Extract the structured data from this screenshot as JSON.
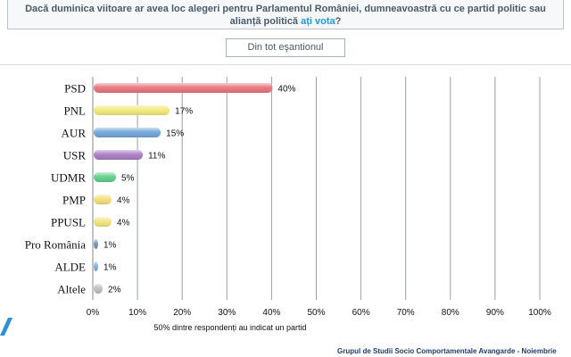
{
  "question": {
    "line1": "Dacă duminica viitoare ar avea loc alegeri pentru Parlamentul României, dumneavoastră cu ce partid politic sau",
    "line2_pre": "alianță politică ",
    "line2_highlight": "ați vota",
    "line2_post": "?"
  },
  "sample_box": {
    "label": "Din tot eşantionul"
  },
  "chart_data": {
    "type": "bar",
    "orientation": "horizontal",
    "categories": [
      "PSD",
      "PNL",
      "AUR",
      "USR",
      "UDMR",
      "PMP",
      "PPUSL",
      "Pro România",
      "ALDE",
      "Altele"
    ],
    "values": [
      40,
      17,
      15,
      11,
      5,
      4,
      4,
      1,
      1,
      2
    ],
    "data_labels": [
      "40%",
      "17%",
      "15%",
      "11%",
      "5%",
      "4%",
      "4%",
      "1%",
      "1%",
      "2%"
    ],
    "colors": [
      "#e8747c",
      "#f1ea7a",
      "#6fa5d8",
      "#a77cc4",
      "#5fcf8a",
      "#f3df7a",
      "#f1e57c",
      "#7a8fb8",
      "#7fb2de",
      "#bdbdbd"
    ],
    "xlim": [
      0,
      100
    ],
    "xticks": [
      "0%",
      "10%",
      "20%",
      "30%",
      "40%",
      "50%",
      "60%",
      "70%",
      "80%",
      "90%",
      "100%"
    ],
    "xlabel": "50% dintre respondenți au indicat un partid",
    "grid": true
  },
  "footer": {
    "text": "Grupul de Studii Socio Comportamentale Avangarde   -  Noiembrie"
  }
}
